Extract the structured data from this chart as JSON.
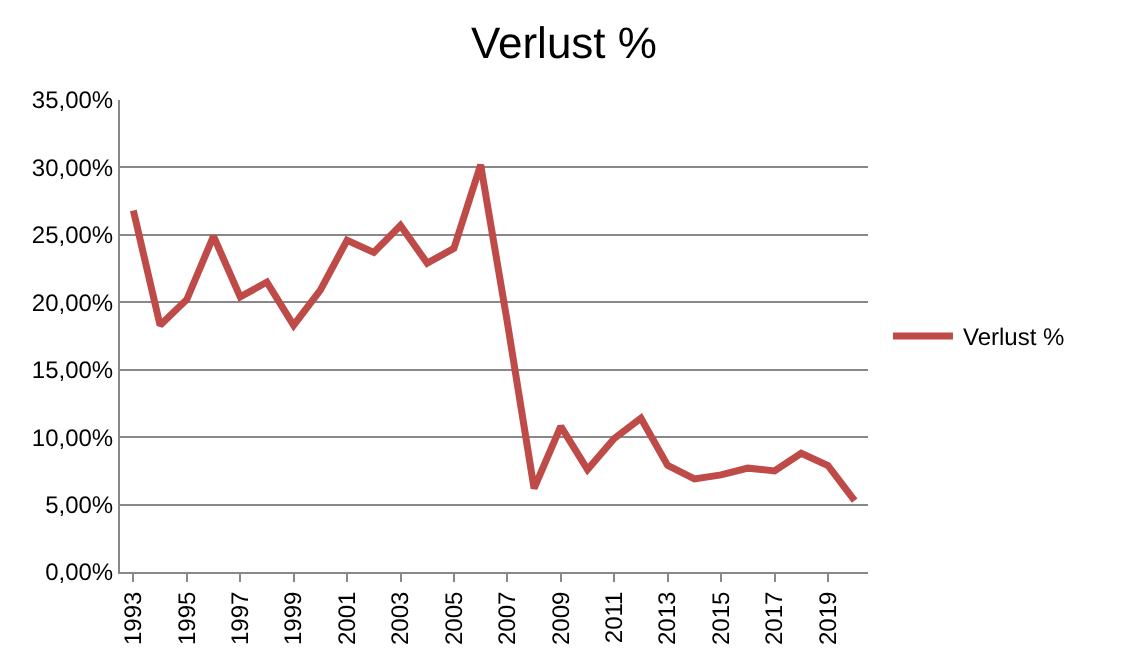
{
  "chart_data": {
    "type": "line",
    "title": "Verlust %",
    "categories": [
      "1993",
      null,
      "1995",
      null,
      "1997",
      null,
      "1999",
      null,
      "2001",
      null,
      "2003",
      null,
      "2005",
      null,
      "2007",
      null,
      "2009",
      null,
      "2011",
      null,
      "2013",
      null,
      "2015",
      null,
      "2017",
      null,
      "2019",
      null
    ],
    "series": [
      {
        "name": "Verlust %",
        "color": "#be4b48",
        "values": [
          26.8,
          18.3,
          20.2,
          24.9,
          20.4,
          21.5,
          18.3,
          20.9,
          24.6,
          23.7,
          25.7,
          22.9,
          24.0,
          30.2,
          18.5,
          6.2,
          10.8,
          7.6,
          9.9,
          11.4,
          7.9,
          6.9,
          7.2,
          7.7,
          7.5,
          8.8,
          7.9,
          5.3
        ]
      }
    ],
    "ylim": [
      0,
      35
    ],
    "yticks": [
      {
        "value": 0,
        "label": "0,00%"
      },
      {
        "value": 5,
        "label": "5,00%"
      },
      {
        "value": 10,
        "label": "10,00%"
      },
      {
        "value": 15,
        "label": "15,00%"
      },
      {
        "value": 20,
        "label": "20,00%"
      },
      {
        "value": 25,
        "label": "25,00%"
      },
      {
        "value": 30,
        "label": "30,00%"
      },
      {
        "value": 35,
        "label": "35,00%"
      }
    ],
    "grid": "y",
    "legend": "right",
    "marker": "none",
    "line_style": "solid"
  }
}
